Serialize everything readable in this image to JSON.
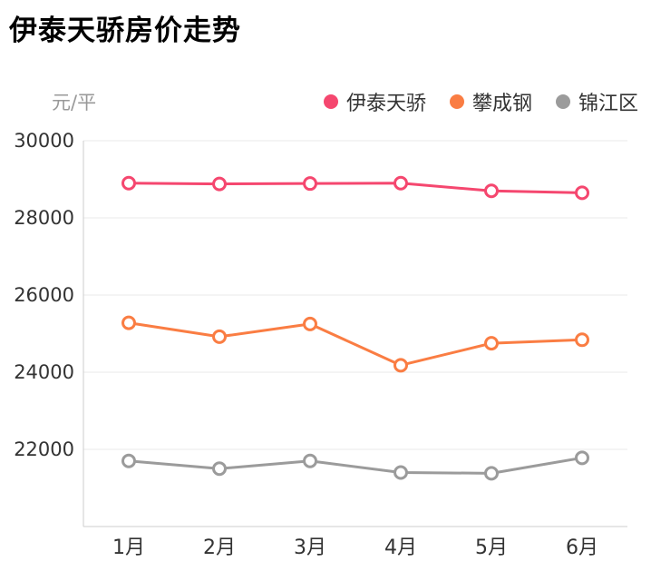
{
  "page": {
    "title": "伊泰天骄房价走势",
    "unit_label": "元/平"
  },
  "chart_data": {
    "type": "line",
    "title": "伊泰天骄房价走势",
    "ylabel": "元/平",
    "xlabel": "",
    "categories": [
      "1月",
      "2月",
      "3月",
      "4月",
      "5月",
      "6月"
    ],
    "series": [
      {
        "name": "伊泰天骄",
        "color": "#f5476f",
        "values": [
          28900,
          28880,
          28890,
          28900,
          28700,
          28650
        ]
      },
      {
        "name": "攀成钢",
        "color": "#fa7d43",
        "values": [
          25280,
          24920,
          25250,
          24180,
          24750,
          24840
        ]
      },
      {
        "name": "锦江区",
        "color": "#9b9b9b",
        "values": [
          21700,
          21500,
          21700,
          21400,
          21380,
          21780
        ]
      }
    ],
    "ylim": [
      20000,
      30000
    ],
    "yticks": [
      22000,
      24000,
      26000,
      28000,
      30000
    ],
    "grid": true,
    "legend_position": "top-right",
    "marker": "hollow-circle",
    "axis_color": "#cccccc",
    "grid_color": "#e8e8e8",
    "tick_label_color": "#333333"
  }
}
